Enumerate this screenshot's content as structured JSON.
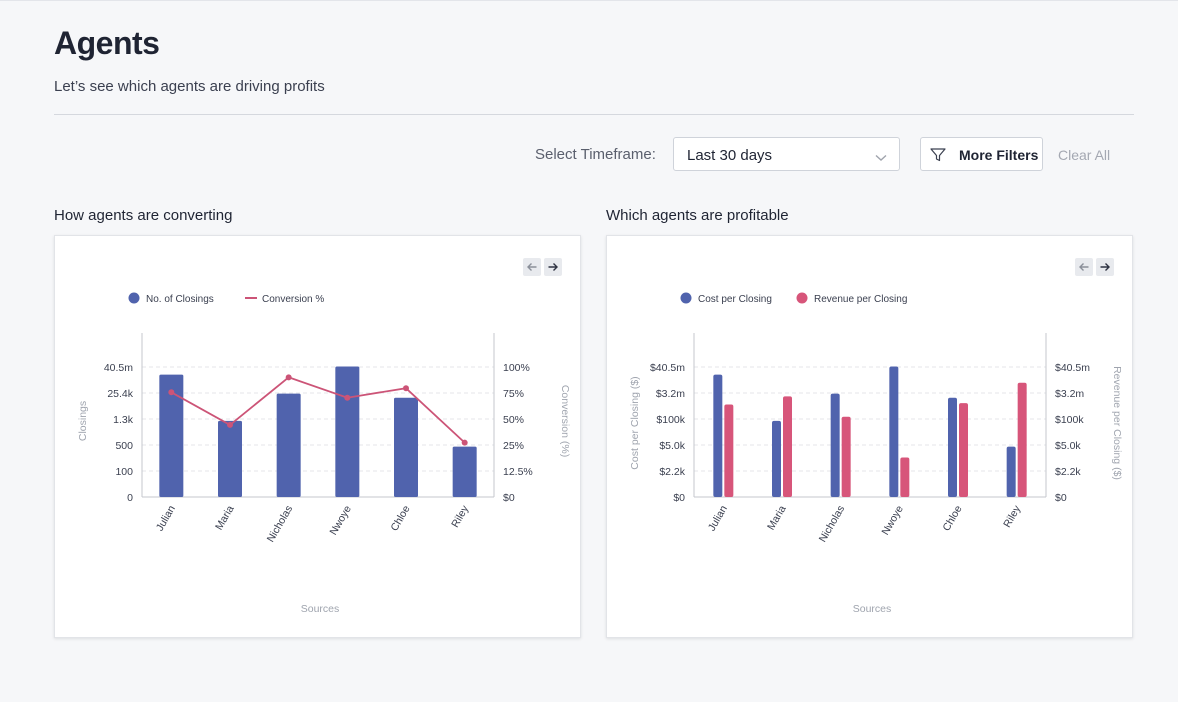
{
  "header": {
    "title": "Agents",
    "subtitle": "Let’s see which agents are driving profits"
  },
  "filters": {
    "timeframe_label": "Select Timeframe:",
    "timeframe_value": "Last 30 days",
    "more_filters_label": "More Filters",
    "clear_all_label": "Clear All"
  },
  "sections": {
    "left_title": "How agents are converting",
    "right_title": "Which agents are profitable"
  },
  "colors": {
    "bar_blue": "#5063ad",
    "line_pink": "#cc5477",
    "bar_pink": "#d7557a",
    "axis_text": "#3b4050",
    "axis_title": "#9fa4ae"
  },
  "chart_data": [
    {
      "type": "bar",
      "categories": [
        "Julian",
        "Maria",
        "Nicholas",
        "Nwoye",
        "Chloe",
        "Riley"
      ],
      "series": [
        {
          "name": "No. of Closings",
          "type": "bar",
          "axis": "left",
          "values": [
            90,
            56,
            76,
            96,
            73,
            37
          ]
        },
        {
          "name": "Conversion %",
          "type": "line",
          "axis": "right",
          "values": [
            77,
            53,
            88,
            73,
            80,
            40
          ]
        }
      ],
      "xlabel": "Sources",
      "ylabel_left": "Closings",
      "ylabel_right": "Conversion (%)",
      "y_left_ticks": [
        "0",
        "100",
        "500",
        "1.3k",
        "25.4k",
        "40.5m"
      ],
      "y_right_ticks": [
        "$0",
        "12.5%",
        "25%",
        "50%",
        "75%",
        "100%"
      ],
      "legend_position": "top-left",
      "grid": true
    },
    {
      "type": "bar",
      "categories": [
        "Julian",
        "Maria",
        "Nicholas",
        "Nwoye",
        "Chloe",
        "Riley"
      ],
      "series": [
        {
          "name": "Cost per Closing",
          "values": [
            90,
            56,
            76,
            96,
            73,
            37
          ]
        },
        {
          "name": "Revenue per Closing",
          "values": [
            68,
            74,
            59,
            29,
            69,
            84
          ]
        }
      ],
      "xlabel": "Sources",
      "ylabel_left": "Cost per Closing ($)",
      "ylabel_right": "Revenue per Closing ($)",
      "y_left_ticks": [
        "$0",
        "$2.2k",
        "$5.0k",
        "$100k",
        "$3.2m",
        "$40.5m"
      ],
      "y_right_ticks": [
        "$0",
        "$2.2k",
        "$5.0k",
        "$100k",
        "$3.2m",
        "$40.5m"
      ],
      "legend_position": "top-left",
      "grid": true
    }
  ]
}
